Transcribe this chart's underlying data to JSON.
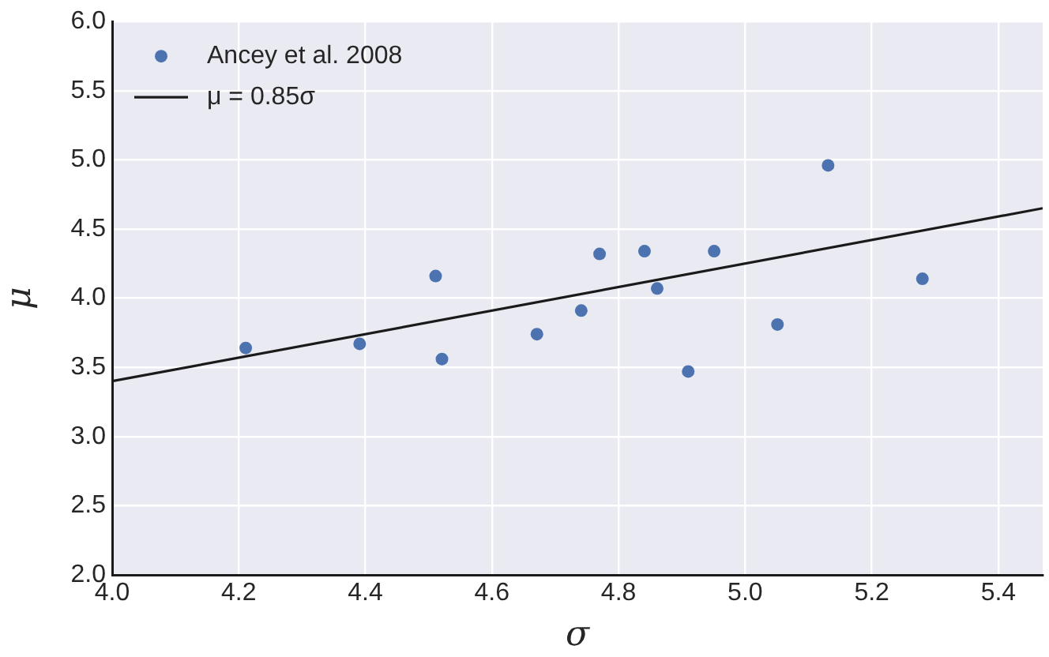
{
  "chart_data": {
    "type": "scatter",
    "xlabel": "σ",
    "ylabel": "μ",
    "xlim": [
      4,
      5.47
    ],
    "ylim": [
      2,
      6
    ],
    "xticks": [
      {
        "value": 4,
        "label": "4.0"
      },
      {
        "value": 4.2,
        "label": "4.2"
      },
      {
        "value": 4.4,
        "label": "4.4"
      },
      {
        "value": 4.6,
        "label": "4.6"
      },
      {
        "value": 4.8,
        "label": "4.8"
      },
      {
        "value": 5,
        "label": "5.0"
      },
      {
        "value": 5.2,
        "label": "5.2"
      },
      {
        "value": 5.4,
        "label": "5.4"
      }
    ],
    "yticks": [
      {
        "value": 2,
        "label": "2.0"
      },
      {
        "value": 2.5,
        "label": "2.5"
      },
      {
        "value": 3,
        "label": "3.0"
      },
      {
        "value": 3.5,
        "label": "3.5"
      },
      {
        "value": 4,
        "label": "4.0"
      },
      {
        "value": 4.5,
        "label": "4.5"
      },
      {
        "value": 5,
        "label": "5.0"
      },
      {
        "value": 5.5,
        "label": "5.5"
      },
      {
        "value": 6,
        "label": "6.0"
      }
    ],
    "grid": true,
    "legend": "top left",
    "marker": "circle",
    "series": [
      {
        "name": "Ancey et al. 2008",
        "type": "scatter",
        "color": "#4c72b0",
        "x": [
          4.211,
          4.391,
          4.511,
          4.521,
          4.671,
          4.741,
          4.77,
          4.841,
          4.861,
          4.91,
          4.951,
          5.051,
          5.131,
          5.28
        ],
        "values": [
          3.64,
          3.67,
          4.16,
          3.56,
          3.74,
          3.91,
          4.32,
          4.34,
          4.07,
          3.47,
          4.34,
          3.81,
          4.96,
          4.14
        ]
      },
      {
        "name": "μ = 0.85σ",
        "type": "line",
        "color": "#1a1a1a",
        "line_style": "solid",
        "marker": "none",
        "x": [
          4,
          5.47
        ],
        "values": [
          3.4,
          4.65
        ]
      }
    ]
  }
}
